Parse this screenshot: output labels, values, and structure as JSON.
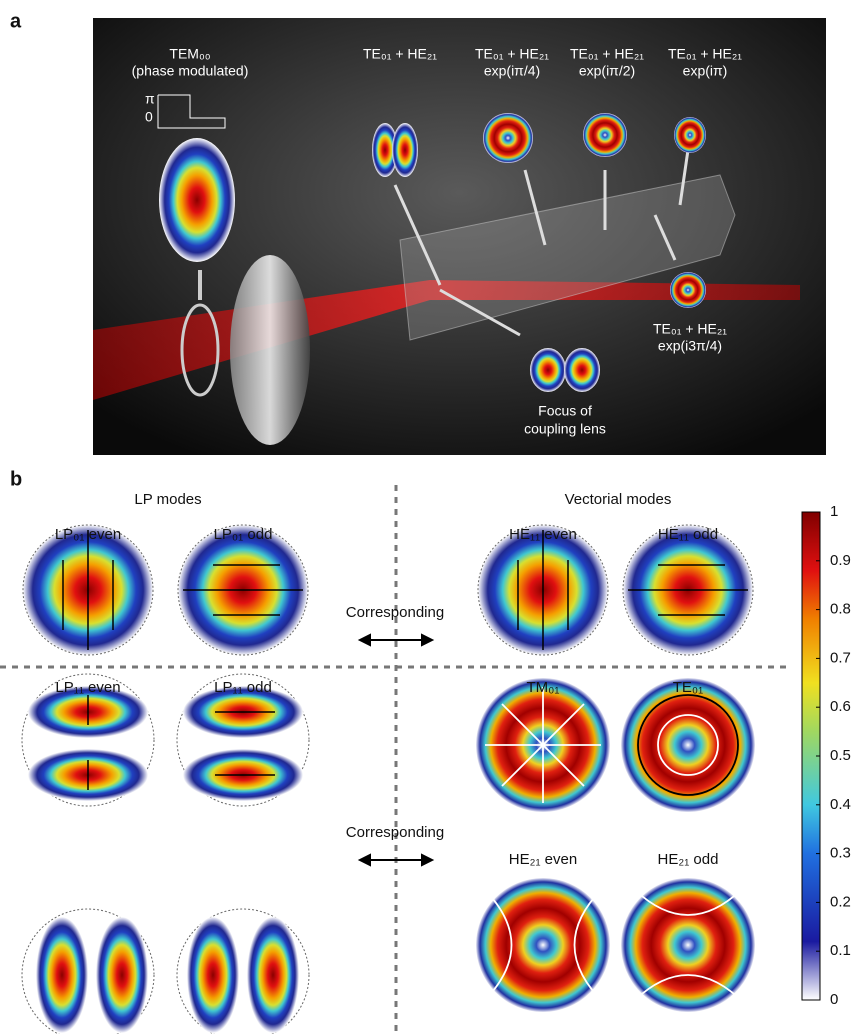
{
  "panel_a": {
    "label": "a",
    "tem": "TEM₀₀",
    "tem_note": "(phase modulated)",
    "phase_top": "π",
    "phase_bottom": "0",
    "modes": [
      {
        "title": "TE₀₁ + HE₂₁"
      },
      {
        "title": "TE₀₁ + HE₂₁",
        "phase": "exp(iπ/4)"
      },
      {
        "title": "TE₀₁ + HE₂₁",
        "phase": "exp(iπ/2)"
      },
      {
        "title": "TE₀₁ + HE₂₁",
        "phase": "exp(iπ)"
      },
      {
        "title": "TE₀₁ + HE₂₁",
        "phase": "exp(i3π/4)"
      }
    ],
    "focus": [
      "Focus of",
      "coupling lens"
    ]
  },
  "panel_b": {
    "label": "b",
    "left_header": "LP modes",
    "right_header": "Vectorial modes",
    "corresponding": [
      "Corresponding",
      "Corresponding"
    ],
    "modes": [
      "LP₀₁ even",
      "LP₀₁ odd",
      "HE₁₁ even",
      "HE₁₁ odd",
      "LP₁₁ even",
      "LP₁₁ odd",
      "TM₀₁",
      "TE₀₁",
      "HE₂₁ even",
      "HE₂₁ odd"
    ]
  },
  "colorbar": {
    "lim": [
      0,
      1
    ],
    "ticks": [
      0,
      0.1,
      0.2,
      0.3,
      0.4,
      0.5,
      0.6,
      0.7,
      0.8,
      0.9,
      1
    ]
  }
}
